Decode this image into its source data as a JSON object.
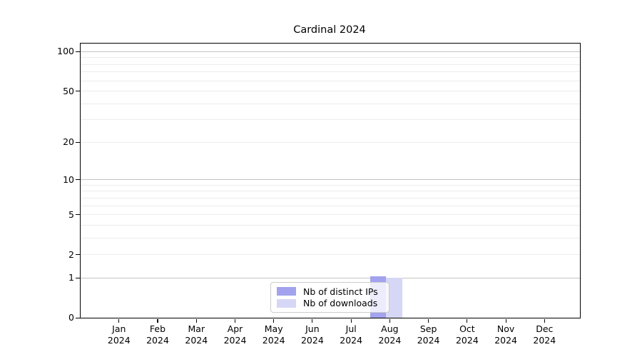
{
  "title": "Cardinal 2024",
  "colors": {
    "distinct_ips_bar": "#a2a2ee",
    "downloads_bar": "#d6d6f6",
    "grid_major": "#c3c3c3",
    "grid_minor": "#ececec",
    "axis": "#000000",
    "legend_border": "#cccccc",
    "background": "#ffffff"
  },
  "legend": {
    "items": [
      {
        "label": "Nb of distinct IPs"
      },
      {
        "label": "Nb of downloads"
      }
    ]
  },
  "y_axis": {
    "tick_labels": [
      "0",
      "1",
      "2",
      "5",
      "10",
      "20",
      "50",
      "100"
    ]
  },
  "x_axis": {
    "month_labels": [
      "Jan",
      "Feb",
      "Mar",
      "Apr",
      "May",
      "Jun",
      "Jul",
      "Aug",
      "Sep",
      "Oct",
      "Nov",
      "Dec"
    ],
    "year": "2024"
  },
  "chart_data": {
    "type": "bar",
    "title": "Cardinal 2024",
    "categories": [
      "Jan 2024",
      "Feb 2024",
      "Mar 2024",
      "Apr 2024",
      "May 2024",
      "Jun 2024",
      "Jul 2024",
      "Aug 2024",
      "Sep 2024",
      "Oct 2024",
      "Nov 2024",
      "Dec 2024"
    ],
    "series": [
      {
        "name": "Nb of distinct IPs",
        "color": "#a2a2ee",
        "values": [
          0,
          0,
          0,
          0,
          0,
          0,
          0,
          1,
          0,
          0,
          0,
          0
        ]
      },
      {
        "name": "Nb of downloads",
        "color": "#d6d6f6",
        "values": [
          0,
          0,
          0,
          0,
          0,
          0,
          0,
          1,
          0,
          0,
          0,
          0
        ]
      }
    ],
    "xlabel": "",
    "ylabel": "",
    "yscale": "log1p",
    "ylim": [
      0,
      115
    ],
    "yticks": [
      0,
      1,
      2,
      5,
      10,
      20,
      50,
      100
    ],
    "yticks_minor": [
      3,
      4,
      6,
      7,
      8,
      9,
      30,
      40,
      60,
      70,
      80,
      90
    ],
    "grid": "horizontal",
    "legend_position": "lower-center"
  }
}
